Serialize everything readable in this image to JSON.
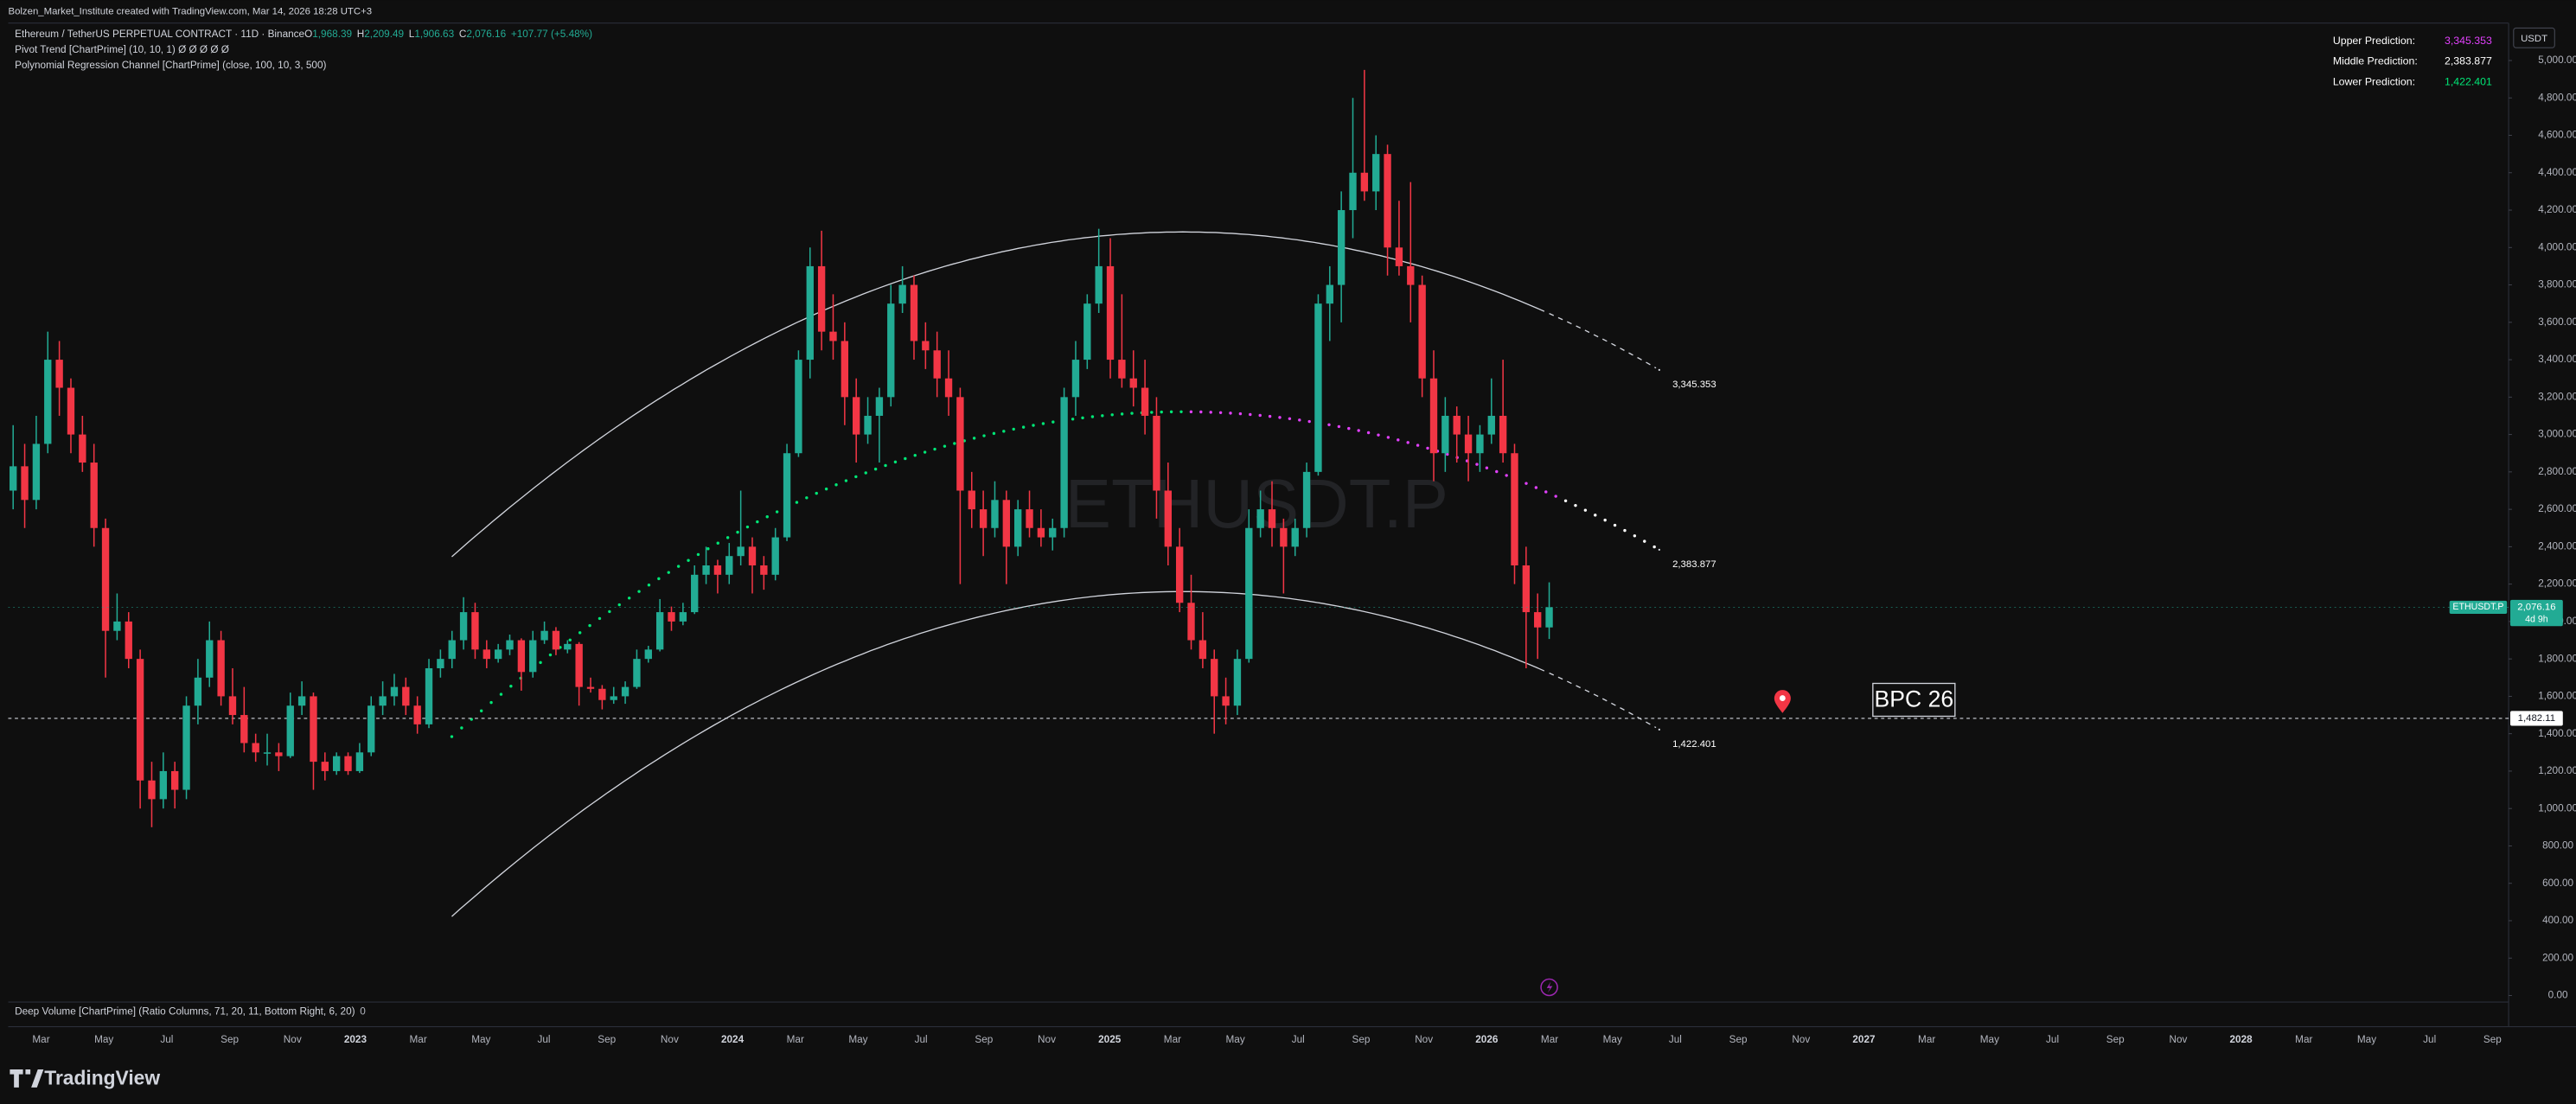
{
  "header": {
    "attribution": "Bolzen_Market_Institute created with TradingView.com, Mar 14, 2026 18:28 UTC+3",
    "symbol": "Ethereum / TetherUS PERPETUAL CONTRACT · 11D · Binance",
    "last_values": [
      {
        "key": "O",
        "label": "1,968.39"
      },
      {
        "key": "H",
        "label": "2,209.49"
      },
      {
        "key": "L",
        "label": "1,906.63"
      },
      {
        "key": "C",
        "label": "2,076.16"
      }
    ],
    "change": "+107.77 (+5.48%)",
    "indicators": [
      "Pivot Trend [ChartPrime] (10, 10, 1)  Ø  Ø  Ø  Ø  Ø",
      "Polynomial Regression Channel [ChartPrime] (close, 100, 10, 3, 500)"
    ]
  },
  "chart_data": {
    "type": "candlestick",
    "currency": "USDT",
    "watermark": "ETHUSDT.P",
    "colors": {
      "up": "#22ab94",
      "down": "#f23645"
    },
    "ylim": [
      -35,
      5200
    ],
    "yticks": [
      {
        "value": 0,
        "label": "0.00"
      },
      {
        "value": 200,
        "label": "200.00"
      },
      {
        "value": 400,
        "label": "400.00"
      },
      {
        "value": 600,
        "label": "600.00"
      },
      {
        "value": 800,
        "label": "800.00"
      },
      {
        "value": 1000,
        "label": "1,000.00"
      },
      {
        "value": 1200,
        "label": "1,200.00"
      },
      {
        "value": 1400,
        "label": "1,400.00"
      },
      {
        "value": 1600,
        "label": "1,600.00"
      },
      {
        "value": 1800,
        "label": "1,800.00"
      },
      {
        "value": 2000,
        "label": "2,000.00"
      },
      {
        "value": 2200,
        "label": "2,200.00"
      },
      {
        "value": 2400,
        "label": "2,400.00"
      },
      {
        "value": 2600,
        "label": "2,600.00"
      },
      {
        "value": 2800,
        "label": "2,800.00"
      },
      {
        "value": 3000,
        "label": "3,000.00"
      },
      {
        "value": 3200,
        "label": "3,200.00"
      },
      {
        "value": 3400,
        "label": "3,400.00"
      },
      {
        "value": 3600,
        "label": "3,600.00"
      },
      {
        "value": 3800,
        "label": "3,800.00"
      },
      {
        "value": 4000,
        "label": "4,000.00"
      },
      {
        "value": 4200,
        "label": "4,200.00"
      },
      {
        "value": 4400,
        "label": "4,400.00"
      },
      {
        "value": 4600,
        "label": "4,600.00"
      },
      {
        "value": 4800,
        "label": "4,800.00"
      },
      {
        "value": 5000,
        "label": "5,000.00"
      }
    ],
    "xticks": [
      "Mar",
      "May",
      "Jul",
      "Sep",
      "Nov",
      "2023",
      "Mar",
      "May",
      "Jul",
      "Sep",
      "Nov",
      "2024",
      "Mar",
      "May",
      "Jul",
      "Sep",
      "Nov",
      "2025",
      "Mar",
      "May",
      "Jul",
      "Sep",
      "Nov",
      "2026",
      "Mar",
      "May",
      "Jul",
      "Sep",
      "Nov",
      "2027",
      "Mar",
      "May",
      "Jul",
      "Sep",
      "Nov",
      "2028",
      "Mar",
      "May",
      "Jul",
      "Sep"
    ],
    "ohlc": [
      [
        2700,
        3050,
        2600,
        2830
      ],
      [
        2830,
        2950,
        2500,
        2650
      ],
      [
        2650,
        3100,
        2600,
        2950
      ],
      [
        2950,
        3550,
        2900,
        3400
      ],
      [
        3400,
        3500,
        3100,
        3250
      ],
      [
        3250,
        3300,
        2900,
        3000
      ],
      [
        3000,
        3100,
        2800,
        2850
      ],
      [
        2850,
        2950,
        2400,
        2500
      ],
      [
        2500,
        2550,
        1700,
        1950
      ],
      [
        1950,
        2150,
        1900,
        2000
      ],
      [
        2000,
        2050,
        1750,
        1800
      ],
      [
        1800,
        1850,
        1000,
        1150
      ],
      [
        1150,
        1250,
        900,
        1050
      ],
      [
        1050,
        1300,
        1000,
        1200
      ],
      [
        1200,
        1250,
        1000,
        1100
      ],
      [
        1100,
        1600,
        1050,
        1550
      ],
      [
        1550,
        1800,
        1450,
        1700
      ],
      [
        1700,
        2000,
        1650,
        1900
      ],
      [
        1900,
        1950,
        1550,
        1600
      ],
      [
        1600,
        1750,
        1450,
        1500
      ],
      [
        1500,
        1650,
        1300,
        1350
      ],
      [
        1350,
        1400,
        1250,
        1300
      ],
      [
        1300,
        1400,
        1230,
        1300
      ],
      [
        1300,
        1350,
        1200,
        1280
      ],
      [
        1280,
        1620,
        1270,
        1550
      ],
      [
        1550,
        1680,
        1500,
        1600
      ],
      [
        1600,
        1620,
        1100,
        1250
      ],
      [
        1250,
        1300,
        1150,
        1200
      ],
      [
        1200,
        1300,
        1180,
        1280
      ],
      [
        1280,
        1300,
        1180,
        1200
      ],
      [
        1200,
        1350,
        1190,
        1300
      ],
      [
        1300,
        1600,
        1280,
        1550
      ],
      [
        1550,
        1680,
        1500,
        1600
      ],
      [
        1600,
        1720,
        1550,
        1650
      ],
      [
        1650,
        1700,
        1500,
        1550
      ],
      [
        1550,
        1600,
        1400,
        1450
      ],
      [
        1450,
        1800,
        1430,
        1750
      ],
      [
        1750,
        1850,
        1700,
        1800
      ],
      [
        1800,
        1950,
        1750,
        1900
      ],
      [
        1900,
        2130,
        1850,
        2050
      ],
      [
        2050,
        2100,
        1800,
        1850
      ],
      [
        1850,
        1900,
        1750,
        1800
      ],
      [
        1800,
        1880,
        1780,
        1850
      ],
      [
        1850,
        1930,
        1820,
        1900
      ],
      [
        1900,
        1910,
        1630,
        1730
      ],
      [
        1730,
        1950,
        1700,
        1900
      ],
      [
        1900,
        2000,
        1880,
        1950
      ],
      [
        1950,
        1970,
        1820,
        1850
      ],
      [
        1850,
        1900,
        1830,
        1880
      ],
      [
        1880,
        1890,
        1550,
        1650
      ],
      [
        1650,
        1700,
        1620,
        1640
      ],
      [
        1640,
        1660,
        1530,
        1580
      ],
      [
        1580,
        1650,
        1560,
        1600
      ],
      [
        1600,
        1680,
        1560,
        1650
      ],
      [
        1650,
        1850,
        1640,
        1800
      ],
      [
        1800,
        1870,
        1780,
        1850
      ],
      [
        1850,
        2120,
        1840,
        2050
      ],
      [
        2050,
        2080,
        1950,
        2000
      ],
      [
        2000,
        2100,
        1980,
        2050
      ],
      [
        2050,
        2300,
        2040,
        2250
      ],
      [
        2250,
        2400,
        2200,
        2300
      ],
      [
        2300,
        2330,
        2150,
        2250
      ],
      [
        2250,
        2420,
        2200,
        2350
      ],
      [
        2350,
        2700,
        2300,
        2400
      ],
      [
        2400,
        2450,
        2150,
        2300
      ],
      [
        2300,
        2350,
        2170,
        2250
      ],
      [
        2250,
        2500,
        2220,
        2450
      ],
      [
        2450,
        2950,
        2430,
        2900
      ],
      [
        2900,
        3450,
        2880,
        3400
      ],
      [
        3400,
        4000,
        3300,
        3900
      ],
      [
        3900,
        4090,
        3450,
        3550
      ],
      [
        3550,
        3750,
        3400,
        3500
      ],
      [
        3500,
        3600,
        3050,
        3200
      ],
      [
        3200,
        3300,
        2850,
        3000
      ],
      [
        3000,
        3200,
        2950,
        3100
      ],
      [
        3100,
        3250,
        2850,
        3200
      ],
      [
        3200,
        3800,
        3150,
        3700
      ],
      [
        3700,
        3900,
        3650,
        3800
      ],
      [
        3800,
        3850,
        3400,
        3500
      ],
      [
        3500,
        3600,
        3350,
        3450
      ],
      [
        3450,
        3550,
        3200,
        3300
      ],
      [
        3300,
        3450,
        3100,
        3200
      ],
      [
        3200,
        3250,
        2200,
        2700
      ],
      [
        2700,
        2800,
        2500,
        2600
      ],
      [
        2600,
        2700,
        2350,
        2500
      ],
      [
        2500,
        2750,
        2450,
        2650
      ],
      [
        2650,
        2700,
        2200,
        2400
      ],
      [
        2400,
        2650,
        2350,
        2600
      ],
      [
        2600,
        2700,
        2450,
        2500
      ],
      [
        2500,
        2600,
        2400,
        2450
      ],
      [
        2450,
        2550,
        2380,
        2500
      ],
      [
        2500,
        3250,
        2450,
        3200
      ],
      [
        3200,
        3500,
        3100,
        3400
      ],
      [
        3400,
        3750,
        3350,
        3700
      ],
      [
        3700,
        4100,
        3650,
        3900
      ],
      [
        3900,
        4050,
        3300,
        3400
      ],
      [
        3400,
        3750,
        3250,
        3300
      ],
      [
        3300,
        3450,
        3150,
        3250
      ],
      [
        3250,
        3400,
        3000,
        3100
      ],
      [
        3100,
        3200,
        2550,
        2700
      ],
      [
        2700,
        2850,
        2300,
        2400
      ],
      [
        2400,
        2500,
        2050,
        2100
      ],
      [
        2100,
        2250,
        1850,
        1900
      ],
      [
        1900,
        2050,
        1750,
        1800
      ],
      [
        1800,
        1850,
        1400,
        1600
      ],
      [
        1600,
        1700,
        1450,
        1550
      ],
      [
        1550,
        1850,
        1500,
        1800
      ],
      [
        1800,
        2600,
        1780,
        2500
      ],
      [
        2500,
        2700,
        2450,
        2600
      ],
      [
        2600,
        2750,
        2400,
        2500
      ],
      [
        2500,
        2550,
        2150,
        2400
      ],
      [
        2400,
        2550,
        2350,
        2500
      ],
      [
        2500,
        2850,
        2450,
        2800
      ],
      [
        2800,
        3750,
        2780,
        3700
      ],
      [
        3700,
        3900,
        3500,
        3800
      ],
      [
        3800,
        4300,
        3600,
        4200
      ],
      [
        4200,
        4800,
        4050,
        4400
      ],
      [
        4400,
        4950,
        4250,
        4300
      ],
      [
        4300,
        4600,
        4200,
        4500
      ],
      [
        4500,
        4550,
        3850,
        4000
      ],
      [
        4000,
        4250,
        3850,
        3900
      ],
      [
        3900,
        4350,
        3600,
        3800
      ],
      [
        3800,
        3850,
        3200,
        3300
      ],
      [
        3300,
        3450,
        2750,
        2900
      ],
      [
        2900,
        3200,
        2800,
        3100
      ],
      [
        3100,
        3150,
        2850,
        3000
      ],
      [
        3000,
        3100,
        2750,
        2900
      ],
      [
        2900,
        3050,
        2800,
        3000
      ],
      [
        3000,
        3300,
        2950,
        3100
      ],
      [
        3100,
        3400,
        2850,
        2900
      ],
      [
        2900,
        2950,
        2200,
        2300
      ],
      [
        2300,
        2400,
        1750,
        2050
      ],
      [
        2050,
        2150,
        1800,
        1968.39
      ],
      [
        1968.39,
        2209.49,
        1906.63,
        2076.16
      ]
    ],
    "price_line": {
      "symbol": "ETHUSDT.P",
      "label": "2,076.16",
      "countdown": "4d 9h"
    },
    "hline": {
      "value": 1482.11,
      "label": "1,482.11"
    },
    "annotation": "BPC 26",
    "channel": [
      {
        "name": "Upper Prediction:",
        "value": 3345.353,
        "value_label": "3,345.353",
        "color": "#e040fb"
      },
      {
        "name": "Middle Prediction:",
        "value": 2383.877,
        "value_label": "2,383.877",
        "color": "#ffffff"
      },
      {
        "name": "Lower Prediction:",
        "value": 1422.401,
        "value_label": "1,422.401",
        "color": "#00e676"
      }
    ],
    "volume_pane": {
      "title": "Deep Volume [ChartPrime] (Ratio Columns, 71, 20, 11, Bottom Right, 6, 20)",
      "value": 0
    }
  },
  "footer": {
    "brand": "TradingView"
  }
}
